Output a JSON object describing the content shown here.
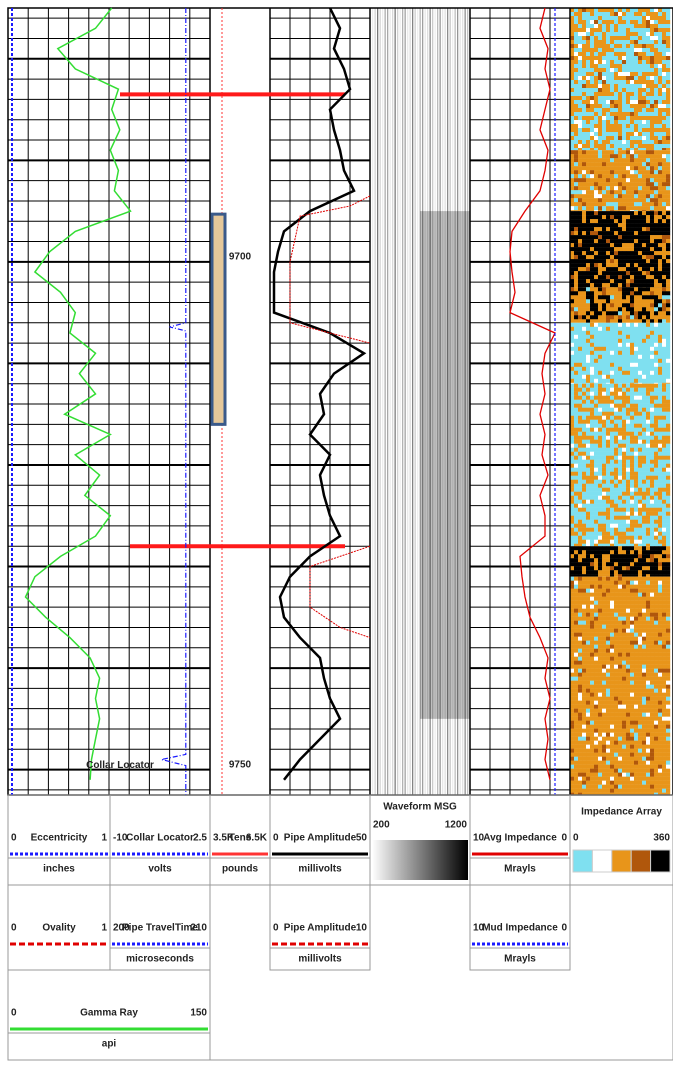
{
  "log": {
    "depth_range": [
      9675,
      9752.5
    ],
    "depth_ticks": [
      9700,
      9750
    ],
    "depths": [
      9675,
      9677,
      9679,
      9681,
      9683,
      9685,
      9687,
      9689,
      9691,
      9693,
      9695,
      9697,
      9699,
      9701,
      9703,
      9705,
      9707,
      9709,
      9711,
      9713,
      9715,
      9717,
      9719,
      9721,
      9723,
      9725,
      9727,
      9729,
      9731,
      9733,
      9735,
      9737,
      9739,
      9741,
      9743,
      9745,
      9747,
      9749,
      9751
    ],
    "markers": [
      9683.5,
      9728
    ],
    "perforation": [
      9695.3,
      9716
    ],
    "collar_label": "Collar Locator"
  },
  "header": {
    "row1": [
      {
        "title": "Eccentricity",
        "left": 0,
        "right": 1,
        "unit": "inches",
        "color": "#1a1aff",
        "depths": [
          9675,
          9752.5
        ],
        "values": [
          0.02,
          0.02
        ]
      },
      {
        "title": "Collar Locator",
        "left": -10,
        "right": 2.5,
        "unit": "volts",
        "color": "#1a1aff",
        "depths": [
          9675,
          9706,
          9706.4,
          9706.8,
          9748.5,
          9749,
          9749.6,
          9752.5
        ],
        "values": [
          1,
          1,
          0,
          1,
          1,
          -0.5,
          1,
          1
        ]
      },
      {
        "title": "Tens",
        "left": "3.5K",
        "right": "6.5K",
        "unit": "pounds",
        "color": "#ff3333"
      },
      {
        "title": "Pipe Amplitude",
        "left": 0,
        "right": 50,
        "unit": "millivolts",
        "color": "#000000",
        "values": [
          30,
          35,
          32,
          37,
          40,
          30,
          32,
          35,
          37,
          42,
          20,
          7,
          4,
          2,
          2,
          2,
          30,
          47,
          32,
          25,
          27,
          20,
          30,
          25,
          27,
          30,
          35,
          20,
          10,
          5,
          7,
          15,
          25,
          27,
          30,
          35,
          25,
          15,
          7
        ]
      },
      {
        "title": "Waveform MSG",
        "left": 200,
        "right": 1200
      },
      {
        "title": "Avg Impedance",
        "left": 10,
        "right": 0,
        "unit": "Mrayls",
        "color": "#e00000",
        "values": [
          2.5,
          3,
          2.2,
          2.5,
          2,
          2.5,
          3,
          2.2,
          2.5,
          3,
          4.5,
          5.8,
          6,
          5.8,
          5.5,
          6,
          1.5,
          2.5,
          2.8,
          2.5,
          3,
          2.5,
          2.8,
          2.2,
          3,
          2.5,
          2.5,
          5,
          4.8,
          4.5,
          4,
          3,
          2.2,
          2.5,
          2,
          2.5,
          2.2,
          2.5,
          2
        ]
      },
      {
        "title": "Impedance Array",
        "left": 0,
        "right": 360,
        "palette": [
          "#7fe0f0",
          "#ffffff",
          "#e8951a",
          "#b0570c",
          "#000000"
        ],
        "zones": [
          {
            "from": 9675,
            "to": 9689,
            "mix": [
              0.45,
              0.05,
              0.45,
              0.05,
              0
            ]
          },
          {
            "from": 9689,
            "to": 9695,
            "mix": [
              0.1,
              0.05,
              0.7,
              0.15,
              0
            ]
          },
          {
            "from": 9695,
            "to": 9702.5,
            "mix": [
              0,
              0,
              0.25,
              0.05,
              0.7
            ]
          },
          {
            "from": 9702.5,
            "to": 9706,
            "mix": [
              0.05,
              0,
              0.5,
              0.1,
              0.35
            ]
          },
          {
            "from": 9706,
            "to": 9712,
            "mix": [
              0.8,
              0.1,
              0.1,
              0,
              0
            ]
          },
          {
            "from": 9712,
            "to": 9728,
            "mix": [
              0.55,
              0.05,
              0.4,
              0,
              0
            ]
          },
          {
            "from": 9728,
            "to": 9731,
            "mix": [
              0,
              0,
              0.3,
              0.05,
              0.65
            ]
          },
          {
            "from": 9731,
            "to": 9752.5,
            "mix": [
              0.05,
              0.05,
              0.8,
              0.1,
              0
            ]
          }
        ]
      }
    ],
    "row2": [
      {
        "title": "Ovality",
        "left": 0,
        "right": 1,
        "color": "#e00000"
      },
      {
        "title": "Pipe TravelTime",
        "left": 200,
        "right": 210,
        "unit": "microseconds",
        "color": "#1a1aff"
      },
      {
        "title": "Pipe Amplitude",
        "left": 0,
        "right": 10,
        "unit": "millivolts",
        "color": "#e00000",
        "depths": [
          9693.5,
          9694.5,
          9695.5,
          9700,
          9706,
          9707,
          9708,
          null,
          9728,
          9729,
          9730,
          9734,
          9736,
          9737
        ],
        "values": [
          10,
          8,
          3,
          2,
          2,
          6,
          10,
          null,
          10,
          7,
          4,
          4,
          7,
          10
        ]
      },
      {
        "title": "Mud Impedance",
        "left": 10,
        "right": 0,
        "unit": "Mrayls",
        "color": "#1a1aff",
        "depths": [
          9675,
          9752.5
        ],
        "values": [
          1.5,
          1.5
        ]
      }
    ],
    "row3": [
      {
        "title": "Gamma Ray",
        "left": 0,
        "right": 150,
        "unit": "api",
        "color": "#33dd33",
        "values": [
          77,
          65,
          37,
          50,
          82,
          77,
          83,
          76,
          82,
          79,
          91,
          50,
          31,
          20,
          39,
          50,
          46,
          65,
          53,
          65,
          42,
          76,
          50,
          68,
          57,
          76,
          65,
          39,
          20,
          13,
          28,
          46,
          61,
          68,
          65,
          68,
          65,
          62,
          61
        ]
      }
    ]
  }
}
